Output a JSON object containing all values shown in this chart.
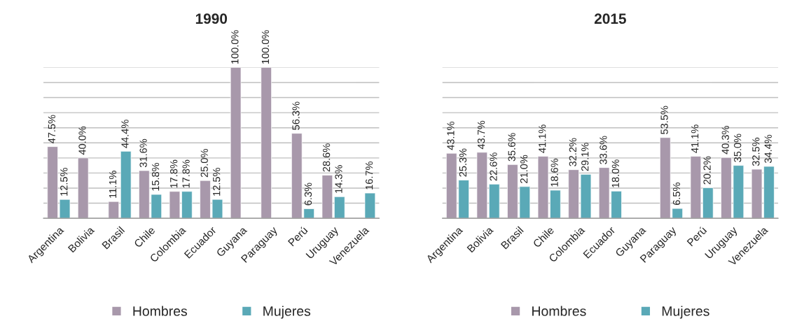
{
  "chart_data": [
    {
      "type": "bar",
      "title": "1990",
      "categories": [
        "Argentina",
        "Bolivia",
        "Brasil",
        "Chile",
        "Colombia",
        "Ecuador",
        "Guyana",
        "Paraguay",
        "Perú",
        "Uruguay",
        "Venezuela"
      ],
      "series": [
        {
          "name": "Hombres",
          "color": "#a898ab",
          "values": [
            47.5,
            40.0,
            11.1,
            31.6,
            17.8,
            25.0,
            100.0,
            100.0,
            56.3,
            28.6,
            null
          ],
          "value_labels": [
            "47.5%",
            "40.0%",
            "11.1%",
            "31.6%",
            "17.8%",
            "25.0%",
            "100.0%",
            "100.0%",
            "56.3%",
            "28.6%",
            null
          ]
        },
        {
          "name": "Mujeres",
          "color": "#5aa9b7",
          "values": [
            12.5,
            null,
            44.4,
            15.8,
            17.8,
            12.5,
            null,
            null,
            6.3,
            14.3,
            16.7
          ],
          "value_labels": [
            "12.5%",
            null,
            "44.4%",
            "15.8%",
            "17.8%",
            "12.5%",
            null,
            null,
            "6.3%",
            "14.3%",
            "16.7%"
          ]
        }
      ],
      "ylim": [
        0,
        100
      ],
      "yticks": [
        {
          "value": 0,
          "label": null
        },
        {
          "value": 10,
          "label": null
        },
        {
          "value": 20,
          "label": null
        },
        {
          "value": 30,
          "label": null
        },
        {
          "value": 40,
          "label": null
        },
        {
          "value": 50,
          "label": null
        },
        {
          "value": 60,
          "label": null
        },
        {
          "value": 70,
          "label": null
        },
        {
          "value": 80,
          "label": null
        },
        {
          "value": 90,
          "label": null
        },
        {
          "value": 100,
          "label": null
        }
      ],
      "tick_labels": "x",
      "grid": "y",
      "legend": "bottom"
    },
    {
      "type": "bar",
      "title": "2015",
      "categories": [
        "Argentina",
        "Bolivia",
        "Brasil",
        "Chile",
        "Colombia",
        "Ecuador",
        "Guyana",
        "Paraguay",
        "Perú",
        "Uruguay",
        "Venezuela"
      ],
      "series": [
        {
          "name": "Hombres",
          "color": "#a898ab",
          "values": [
            43.1,
            43.7,
            35.6,
            41.1,
            32.2,
            33.6,
            null,
            53.5,
            41.1,
            40.3,
            32.5
          ],
          "value_labels": [
            "43.1%",
            "43.7%",
            "35.6%",
            "41.1%",
            "32.2%",
            "33.6%",
            null,
            "53.5%",
            "41.1%",
            "40.3%",
            "32.5%"
          ]
        },
        {
          "name": "Mujeres",
          "color": "#5aa9b7",
          "values": [
            25.3,
            22.6,
            21.0,
            18.6,
            29.1,
            18.0,
            null,
            6.5,
            20.2,
            35.0,
            34.4
          ],
          "value_labels": [
            "25.3%",
            "22.6%",
            "21.0%",
            "18.6%",
            "29.1%",
            "18.0%",
            null,
            "6.5%",
            "20.2%",
            "35.0%",
            "34.4%"
          ]
        }
      ],
      "ylim": [
        0,
        100
      ],
      "yticks": [
        {
          "value": 0,
          "label": null
        },
        {
          "value": 10,
          "label": null
        },
        {
          "value": 20,
          "label": null
        },
        {
          "value": 30,
          "label": null
        },
        {
          "value": 40,
          "label": null
        },
        {
          "value": 50,
          "label": null
        },
        {
          "value": 60,
          "label": null
        },
        {
          "value": 70,
          "label": null
        },
        {
          "value": 80,
          "label": null
        },
        {
          "value": 90,
          "label": null
        },
        {
          "value": 100,
          "label": null
        }
      ],
      "tick_labels": "x",
      "grid": "y",
      "legend": "bottom"
    }
  ]
}
